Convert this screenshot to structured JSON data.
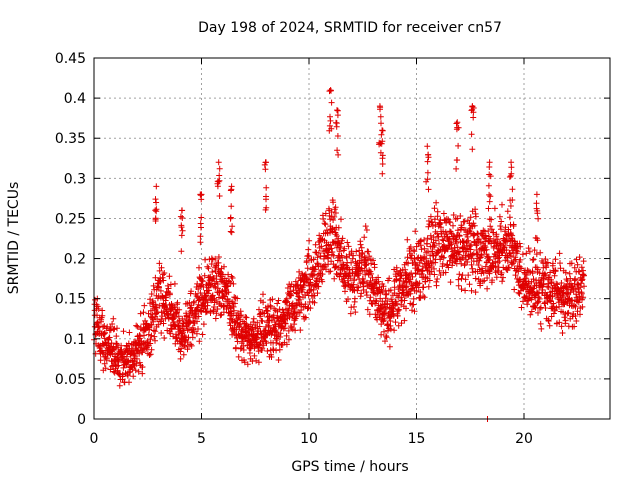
{
  "chart_data": {
    "type": "scatter",
    "title": "Day 198 of 2024, SRMTID for receiver cn57",
    "xlabel": "GPS time / hours",
    "ylabel": "SRMTID / TECUs",
    "xlim": [
      0,
      24.0
    ],
    "ylim": [
      0,
      0.45
    ],
    "x_ticks": [
      0,
      5,
      10,
      15,
      20
    ],
    "y_ticks": [
      0,
      0.05,
      0.1,
      0.15,
      0.2,
      0.25,
      0.3,
      0.35,
      0.4,
      0.45
    ],
    "x_tick_labels": [
      "0",
      "5",
      "10",
      "15",
      "20"
    ],
    "y_tick_labels": [
      "0",
      "0.05",
      "0.1",
      "0.15",
      "0.2",
      "0.25",
      "0.3",
      "0.35",
      "0.4",
      "0.45"
    ],
    "grid": true,
    "marker": "+",
    "color": "#e00000",
    "series": [
      {
        "name": "SRMTID",
        "trend": {
          "x": [
            0,
            0.5,
            1.0,
            1.5,
            2.0,
            2.5,
            3.0,
            3.5,
            4.0,
            4.5,
            5.0,
            5.5,
            6.0,
            6.5,
            7.0,
            7.5,
            8.0,
            8.5,
            9.0,
            9.5,
            10.0,
            10.5,
            11.0,
            11.5,
            12.0,
            12.5,
            13.0,
            13.5,
            14.0,
            14.5,
            15.0,
            15.5,
            16.0,
            16.5,
            17.0,
            17.5,
            18.0,
            18.5,
            19.0,
            19.5,
            20.0,
            20.5,
            21.0,
            21.5,
            22.0,
            22.5,
            22.8
          ],
          "y": [
            0.12,
            0.1,
            0.075,
            0.07,
            0.085,
            0.11,
            0.15,
            0.14,
            0.1,
            0.12,
            0.15,
            0.16,
            0.17,
            0.13,
            0.1,
            0.1,
            0.12,
            0.11,
            0.13,
            0.15,
            0.17,
            0.19,
            0.23,
            0.2,
            0.17,
            0.2,
            0.16,
            0.13,
            0.15,
            0.17,
            0.18,
            0.2,
            0.22,
            0.22,
            0.21,
            0.22,
            0.2,
            0.2,
            0.22,
            0.21,
            0.17,
            0.16,
            0.16,
            0.16,
            0.15,
            0.16,
            0.17
          ]
        },
        "peaks": [
          {
            "x": 2.9,
            "y": 0.29
          },
          {
            "x": 4.1,
            "y": 0.26
          },
          {
            "x": 5.0,
            "y": 0.28
          },
          {
            "x": 5.8,
            "y": 0.32
          },
          {
            "x": 6.4,
            "y": 0.29
          },
          {
            "x": 8.0,
            "y": 0.32
          },
          {
            "x": 11.0,
            "y": 0.41
          },
          {
            "x": 11.3,
            "y": 0.385
          },
          {
            "x": 13.3,
            "y": 0.39
          },
          {
            "x": 13.4,
            "y": 0.36
          },
          {
            "x": 15.5,
            "y": 0.34
          },
          {
            "x": 16.9,
            "y": 0.37
          },
          {
            "x": 17.6,
            "y": 0.39
          },
          {
            "x": 18.4,
            "y": 0.32
          },
          {
            "x": 19.4,
            "y": 0.32
          },
          {
            "x": 20.6,
            "y": 0.28
          }
        ],
        "outliers": [
          {
            "x": 18.3,
            "y": 0.0
          }
        ]
      }
    ]
  }
}
